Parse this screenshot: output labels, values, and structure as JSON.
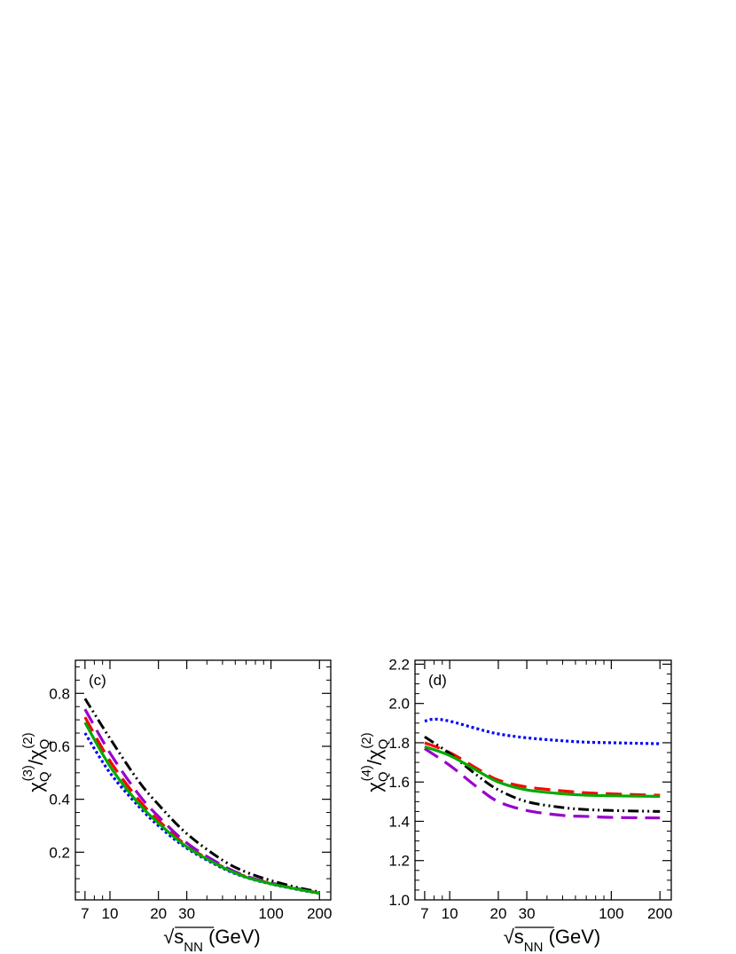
{
  "chart_data": [
    {
      "type": "line",
      "panel_label": "(c)",
      "xlabel": {
        "root": "√",
        "s": "s",
        "sub": "NN",
        "unit": " (GeV)"
      },
      "ylabel": {
        "chi": "χ",
        "sub": "Q",
        "sup_num": "(3)",
        "sup_den": "(2)"
      },
      "xscale": "log",
      "xlim": [
        6.1,
        235
      ],
      "ylim": [
        0.02,
        0.925
      ],
      "x_ticks": [
        7,
        10,
        20,
        30,
        100,
        200
      ],
      "x_tick_labels": [
        "7",
        "10",
        "20",
        "30",
        "100",
        "200"
      ],
      "y_ticks": [
        0.2,
        0.4,
        0.6,
        0.8
      ],
      "y_tick_labels": [
        "0.2",
        "0.4",
        "0.6",
        "0.8"
      ],
      "grid": false,
      "series": [
        {
          "color": "#0000ff",
          "dash": "dotted",
          "x": [
            7,
            10,
            15,
            20,
            30,
            50,
            70,
            100,
            150,
            200
          ],
          "y": [
            0.65,
            0.5,
            0.375,
            0.3,
            0.215,
            0.14,
            0.105,
            0.08,
            0.058,
            0.045
          ]
        },
        {
          "color": "#ff0000",
          "dash": "long-dash",
          "x": [
            7,
            10,
            15,
            20,
            30,
            50,
            70,
            100,
            150,
            200
          ],
          "y": [
            0.71,
            0.545,
            0.4,
            0.32,
            0.225,
            0.145,
            0.108,
            0.082,
            0.06,
            0.046
          ]
        },
        {
          "color": "#9900cc",
          "dash": "long-dash",
          "x": [
            7,
            10,
            15,
            20,
            30,
            50,
            70,
            100,
            150,
            200
          ],
          "y": [
            0.74,
            0.575,
            0.42,
            0.335,
            0.235,
            0.15,
            0.11,
            0.084,
            0.061,
            0.047
          ]
        },
        {
          "color": "#000000",
          "dash": "dash-dot-dot",
          "x": [
            7,
            10,
            15,
            20,
            30,
            50,
            70,
            100,
            150,
            200
          ],
          "y": [
            0.78,
            0.63,
            0.47,
            0.38,
            0.27,
            0.17,
            0.125,
            0.093,
            0.065,
            0.05
          ]
        },
        {
          "color": "#00aa00",
          "dash": "solid",
          "x": [
            7,
            10,
            15,
            20,
            30,
            50,
            70,
            100,
            150,
            200
          ],
          "y": [
            0.69,
            0.525,
            0.385,
            0.31,
            0.22,
            0.143,
            0.106,
            0.081,
            0.059,
            0.045
          ]
        }
      ]
    },
    {
      "type": "line",
      "panel_label": "(d)",
      "xlabel": {
        "root": "√",
        "s": "s",
        "sub": "NN",
        "unit": " (GeV)"
      },
      "ylabel": {
        "chi": "χ",
        "sub": "Q",
        "sup_num": "(4)",
        "sup_den": "(2)"
      },
      "xscale": "log",
      "xlim": [
        6.1,
        235
      ],
      "ylim": [
        1.0,
        2.22
      ],
      "x_ticks": [
        7,
        10,
        20,
        30,
        100,
        200
      ],
      "x_tick_labels": [
        "7",
        "10",
        "20",
        "30",
        "100",
        "200"
      ],
      "y_ticks": [
        1.0,
        1.2,
        1.4,
        1.6,
        1.8,
        2.0,
        2.2
      ],
      "y_tick_labels": [
        "1.0",
        "1.2",
        "1.4",
        "1.6",
        "1.8",
        "2.0",
        "2.2"
      ],
      "grid": false,
      "series": [
        {
          "color": "#0000ff",
          "dash": "dotted",
          "x": [
            7,
            8,
            10,
            15,
            20,
            30,
            50,
            70,
            100,
            150,
            200
          ],
          "y": [
            1.91,
            1.92,
            1.91,
            1.87,
            1.845,
            1.825,
            1.81,
            1.803,
            1.8,
            1.797,
            1.795
          ]
        },
        {
          "color": "#ff0000",
          "dash": "long-dash",
          "x": [
            7,
            10,
            15,
            20,
            30,
            50,
            70,
            100,
            150,
            200
          ],
          "y": [
            1.8,
            1.75,
            1.665,
            1.61,
            1.575,
            1.555,
            1.545,
            1.54,
            1.535,
            1.533
          ]
        },
        {
          "color": "#9900cc",
          "dash": "long-dash",
          "x": [
            7,
            10,
            15,
            20,
            30,
            50,
            70,
            100,
            150,
            200
          ],
          "y": [
            1.77,
            1.685,
            1.57,
            1.5,
            1.455,
            1.43,
            1.425,
            1.42,
            1.418,
            1.417
          ]
        },
        {
          "color": "#000000",
          "dash": "dash-dot-dot",
          "x": [
            7,
            10,
            15,
            20,
            30,
            50,
            70,
            100,
            150,
            200
          ],
          "y": [
            1.83,
            1.745,
            1.63,
            1.56,
            1.5,
            1.47,
            1.46,
            1.455,
            1.452,
            1.45
          ]
        },
        {
          "color": "#00aa00",
          "dash": "solid",
          "x": [
            7,
            10,
            15,
            20,
            30,
            50,
            70,
            100,
            150,
            200
          ],
          "y": [
            1.78,
            1.735,
            1.655,
            1.6,
            1.56,
            1.54,
            1.533,
            1.53,
            1.528,
            1.527
          ]
        }
      ]
    }
  ]
}
